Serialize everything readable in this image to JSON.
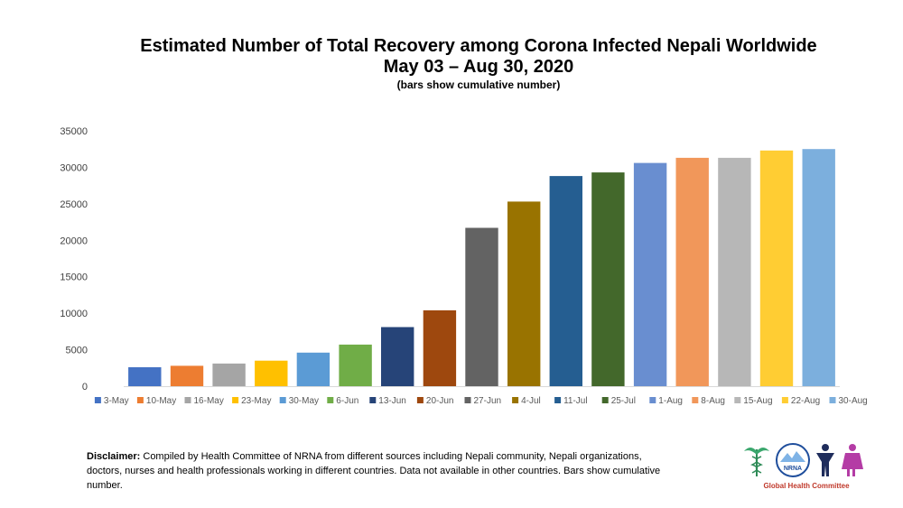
{
  "chart_data": {
    "type": "bar",
    "title_line1": "Estimated Number of Total Recovery among Corona Infected Nepali Worldwide",
    "title_line2": "May 03 – Aug 30, 2020",
    "subtitle": "(bars show cumulative number)",
    "categories": [
      "3-May",
      "10-May",
      "16-May",
      "23-May",
      "30-May",
      "6-Jun",
      "13-Jun",
      "20-Jun",
      "27-Jun",
      "4-Jul",
      "11-Jul",
      "25-Jul",
      "1-Aug",
      "8-Aug",
      "15-Aug",
      "22-Aug",
      "30-Aug"
    ],
    "values": [
      2600,
      2800,
      3100,
      3500,
      4600,
      5700,
      8100,
      10400,
      21700,
      25300,
      28800,
      29300,
      30600,
      31300,
      31300,
      32300,
      32500
    ],
    "colors": [
      "#4472c4",
      "#ed7d31",
      "#a5a5a5",
      "#ffc000",
      "#5b9bd5",
      "#70ad47",
      "#264478",
      "#9e480e",
      "#636363",
      "#997300",
      "#255e91",
      "#43682b",
      "#698ed0",
      "#f1975a",
      "#b7b7b7",
      "#ffcd33",
      "#7cafdd"
    ],
    "ylim": [
      0,
      35000
    ],
    "yticks": [
      0,
      5000,
      10000,
      15000,
      20000,
      25000,
      30000,
      35000
    ],
    "grid": false,
    "legend_position": "bottom"
  },
  "disclaimer": {
    "label": "Disclaimer:",
    "text": " Compiled by Health Committee of NRNA from different sources including Nepali community, Nepali organizations, doctors, nurses and health professionals working in different countries. Data not available in other countries. Bars show cumulative number."
  },
  "logo": {
    "text": "NRNA",
    "caption": "Global Health Committee",
    "icons": [
      "caduceus-icon",
      "nrna-emblem-icon",
      "man-figure-icon",
      "woman-figure-icon"
    ]
  }
}
